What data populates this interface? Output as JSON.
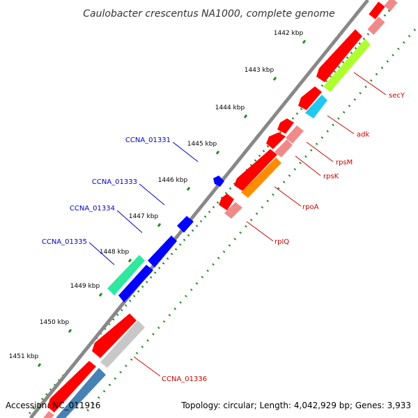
{
  "title": "Caulobacter crescentus NA1000, complete genome",
  "footer": {
    "accession": "Accession: NC_011916",
    "summary": "Topology: circular; Length: 4,042,929 bp; Genes: 3,933"
  },
  "kbp_ticks": [
    "1442 kbp",
    "1443 kbp",
    "1444 kbp",
    "1445 kbp",
    "1446 kbp",
    "1447 kbp",
    "1448 kbp",
    "1449 kbp",
    "1450 kbp",
    "1451 kbp"
  ],
  "genes_right": [
    "secY",
    "adk",
    "rpsM",
    "rpsK",
    "rpoA",
    "rplQ",
    "CCNA_01336"
  ],
  "genes_left": [
    "CCNA_01331",
    "CCNA_01333",
    "CCNA_01334",
    "CCNA_01335"
  ],
  "colors": {
    "label_right": "#cc0000",
    "label_left": "#0000cc",
    "backbone": "#888888",
    "tick_green": "#228b22",
    "cds_red": "#ff0000",
    "cds_pink": "#f08a8a",
    "cds_blue": "#0000ff",
    "secY": "#adff2f",
    "adk": "#1ec8f0",
    "rpoA": "#ff8c00",
    "CCNA_01335": "#2ee8a0",
    "CCNA_01336": "#c8c8c8",
    "steelblue": "#4682b4"
  }
}
